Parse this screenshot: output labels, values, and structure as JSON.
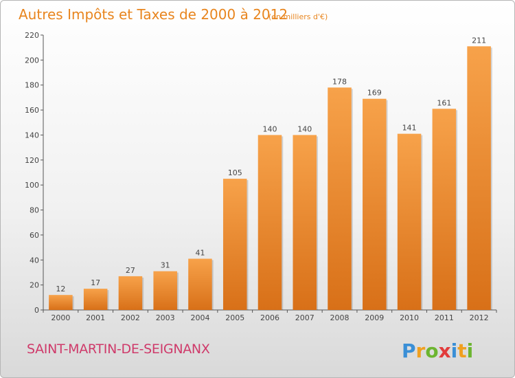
{
  "chart_data": {
    "type": "bar",
    "title": "Autres Impôts et Taxes de 2000 à 2012",
    "subtitle": "(en milliers d'€)",
    "categories": [
      "2000",
      "2001",
      "2002",
      "2003",
      "2004",
      "2005",
      "2006",
      "2007",
      "2008",
      "2009",
      "2010",
      "2011",
      "2012"
    ],
    "values": [
      12,
      17,
      27,
      31,
      41,
      105,
      140,
      140,
      178,
      169,
      141,
      161,
      211
    ],
    "ylim": [
      0,
      220
    ],
    "yticks": [
      0,
      20,
      40,
      60,
      80,
      100,
      120,
      140,
      160,
      180,
      200,
      220
    ],
    "grid": false,
    "colors": {
      "bar_top": "#f7a24a",
      "bar_bottom": "#d87018",
      "title": "#e8851e",
      "city": "#cf3a6a"
    }
  },
  "footer": {
    "city": "SAINT-MARTIN-DE-SEIGNANX",
    "logo": {
      "letters": [
        "P",
        "r",
        "o",
        "x",
        "i",
        "t",
        "i"
      ],
      "colors": [
        "#3a8fd6",
        "#f0a020",
        "#6cb530",
        "#e23c3c",
        "#3a8fd6",
        "#f0a020",
        "#6cb530"
      ]
    }
  }
}
